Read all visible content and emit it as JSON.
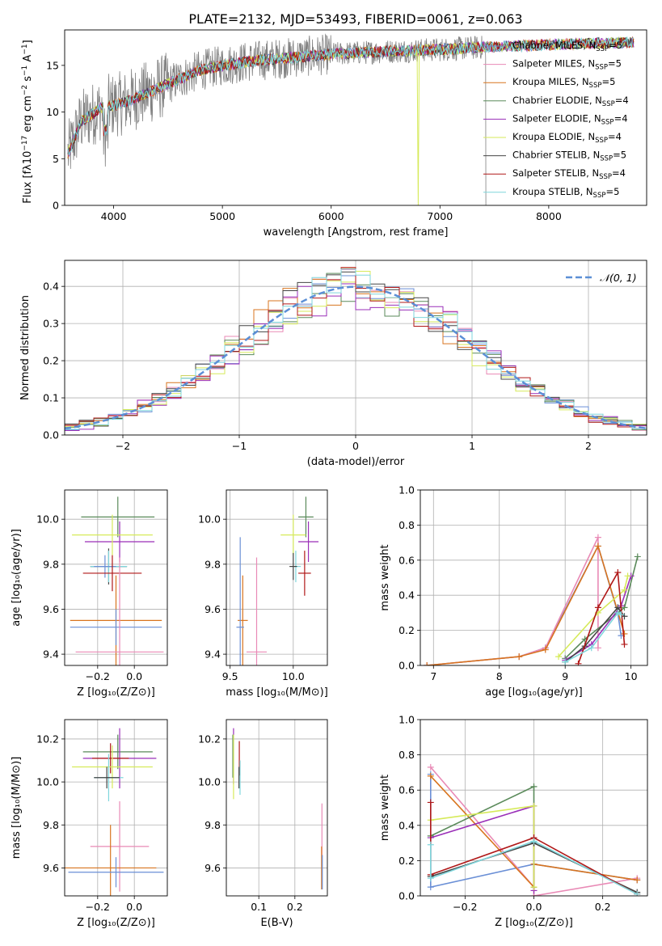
{
  "figure": {
    "title": "PLATE=2132, MJD=53493, FIBERID=0061, z=0.063"
  },
  "models": [
    {
      "name": "Chabrier MILES",
      "nssp": "5",
      "color": "#6a8fd6"
    },
    {
      "name": "Salpeter MILES",
      "nssp": "5",
      "color": "#e98ab6"
    },
    {
      "name": "Kroupa MILES",
      "nssp": "5",
      "color": "#d8741f"
    },
    {
      "name": "Chabrier ELODIE",
      "nssp": "4",
      "color": "#5a8a5a"
    },
    {
      "name": "Salpeter ELODIE",
      "nssp": "4",
      "color": "#9a2fb8"
    },
    {
      "name": "Kroupa ELODIE",
      "nssp": "4",
      "color": "#d6ea5a"
    },
    {
      "name": "Chabrier STELIB",
      "nssp": "5",
      "color": "#444444"
    },
    {
      "name": "Salpeter STELIB",
      "nssp": "4",
      "color": "#b01818"
    },
    {
      "name": "Kroupa STELIB",
      "nssp": "5",
      "color": "#7fd6dc"
    }
  ],
  "chart_data": [
    {
      "id": "spectrum",
      "type": "line",
      "xlabel": "wavelength [Angstrom, rest frame]",
      "ylabel_main": "Flux [f",
      "xlim": [
        3550,
        8900
      ],
      "ylim": [
        0,
        18.8
      ],
      "xticks": [
        4000,
        5000,
        6000,
        7000,
        8000
      ],
      "yticks": [
        0,
        5,
        10,
        15
      ],
      "grid": false,
      "legend": "right",
      "continuum": [
        [
          3580,
          5.5
        ],
        [
          3700,
          9
        ],
        [
          3900,
          10.5
        ],
        [
          4100,
          11
        ],
        [
          4300,
          12
        ],
        [
          4500,
          13
        ],
        [
          4800,
          14.5
        ],
        [
          5000,
          15
        ],
        [
          5300,
          15.5
        ],
        [
          5600,
          15.8
        ],
        [
          6000,
          16.2
        ],
        [
          6500,
          16.5
        ],
        [
          7000,
          16.7
        ],
        [
          7500,
          17
        ],
        [
          8000,
          17.2
        ],
        [
          8500,
          17.4
        ],
        [
          8800,
          17.5
        ]
      ],
      "data_color": "#808080",
      "data_end": 7420,
      "model_end": 8780
    },
    {
      "id": "residuals",
      "type": "histogram",
      "xlabel": "(data-model)/error",
      "ylabel": "Normed distribution",
      "xlim": [
        -2.5,
        2.5
      ],
      "ylim": [
        0,
        0.47
      ],
      "xticks": [
        -2,
        -1,
        0,
        1,
        2
      ],
      "yticks": [
        0.0,
        0.1,
        0.2,
        0.3,
        0.4
      ],
      "grid": true,
      "legend": "top-right",
      "legend_label": "𝒩(0, 1)",
      "bins": 40,
      "bin_width": 0.125,
      "curve_color": "#5b8fd6"
    },
    {
      "id": "age_vs_Z",
      "type": "scatter",
      "xlabel": "Z [log₁₀(Z/Z⊙)]",
      "ylabel": "age  [log₁₀(age/yr)]",
      "xlim": [
        -0.38,
        0.18
      ],
      "ylim": [
        9.35,
        10.13
      ],
      "xticks": [
        -0.2,
        0.0
      ],
      "yticks": [
        9.4,
        9.6,
        9.8,
        10.0
      ],
      "grid": true,
      "points": [
        {
          "x": -0.09,
          "y": 10.01,
          "ex": 0.2,
          "ey": 0.09,
          "m": 3
        },
        {
          "x": -0.08,
          "y": 9.9,
          "ex": 0.19,
          "ey": 0.09,
          "m": 4
        },
        {
          "x": -0.12,
          "y": 9.93,
          "ex": 0.22,
          "ey": 0.09,
          "m": 5
        },
        {
          "x": -0.14,
          "y": 9.79,
          "ex": 0.1,
          "ey": 0.08,
          "m": 6
        },
        {
          "x": -0.14,
          "y": 9.79,
          "ex": 0.1,
          "ey": 0.07,
          "m": 8
        },
        {
          "x": -0.16,
          "y": 9.79,
          "ex": 0.06,
          "ey": 0.05,
          "m": 0
        },
        {
          "x": -0.12,
          "y": 9.76,
          "ex": 0.16,
          "ey": 0.08,
          "m": 7
        },
        {
          "x": -0.1,
          "y": 9.55,
          "ex": 0.25,
          "ey": 0.2,
          "m": 2
        },
        {
          "x": -0.1,
          "y": 9.52,
          "ex": 0.25,
          "ey": 0.08,
          "m": 0
        },
        {
          "x": -0.08,
          "y": 9.41,
          "ex": 0.24,
          "ey": 0.42,
          "m": 1
        }
      ]
    },
    {
      "id": "age_vs_mass",
      "type": "scatter",
      "xlabel": "mass [log₁₀(M/M⊙)]",
      "ylabel": "",
      "xlim": [
        9.47,
        10.27
      ],
      "ylim": [
        9.35,
        10.13
      ],
      "xticks": [
        9.5,
        10.0
      ],
      "yticks": [
        9.4,
        9.6,
        9.8,
        10.0
      ],
      "grid": true,
      "points": [
        {
          "x": 10.1,
          "y": 10.01,
          "ex": 0.06,
          "ey": 0.09,
          "m": 3
        },
        {
          "x": 10.12,
          "y": 9.9,
          "ex": 0.08,
          "ey": 0.09,
          "m": 4
        },
        {
          "x": 10.0,
          "y": 9.93,
          "ex": 0.1,
          "ey": 0.09,
          "m": 5
        },
        {
          "x": 10.02,
          "y": 9.79,
          "ex": 0.04,
          "ey": 0.07,
          "m": 8
        },
        {
          "x": 10.0,
          "y": 9.79,
          "ex": 0.03,
          "ey": 0.06,
          "m": 6
        },
        {
          "x": 10.09,
          "y": 9.76,
          "ex": 0.05,
          "ey": 0.1,
          "m": 7
        },
        {
          "x": 9.6,
          "y": 9.55,
          "ex": 0.04,
          "ey": 0.2,
          "m": 2
        },
        {
          "x": 9.58,
          "y": 9.52,
          "ex": 0.03,
          "ey": 0.4,
          "m": 0
        },
        {
          "x": 9.71,
          "y": 9.41,
          "ex": 0.08,
          "ey": 0.42,
          "m": 1
        }
      ]
    },
    {
      "id": "mass_weight_vs_age",
      "type": "line",
      "xlabel": "age  [log₁₀(age/yr)]",
      "ylabel": "mass weight",
      "xlim": [
        6.8,
        10.25
      ],
      "ylim": [
        0,
        1.0
      ],
      "xticks": [
        7,
        8,
        9,
        10
      ],
      "yticks": [
        0.0,
        0.2,
        0.4,
        0.6,
        0.8,
        1.0
      ],
      "grid": true,
      "series": [
        {
          "m": 0,
          "x": [
            6.9,
            8.3,
            8.7,
            9.5,
            9.8,
            9.85
          ],
          "y": [
            0.0,
            0.05,
            0.1,
            0.68,
            0.3,
            0.17
          ]
        },
        {
          "m": 1,
          "x": [
            6.9,
            8.3,
            8.7,
            9.5,
            9.5
          ],
          "y": [
            0.0,
            0.05,
            0.1,
            0.73,
            0.1
          ]
        },
        {
          "m": 2,
          "x": [
            6.9,
            8.3,
            8.7,
            9.5,
            9.9
          ],
          "y": [
            0.0,
            0.05,
            0.09,
            0.68,
            0.18
          ]
        },
        {
          "m": 3,
          "x": [
            9.0,
            9.3,
            9.9,
            10.1
          ],
          "y": [
            0.04,
            0.15,
            0.33,
            0.62
          ]
        },
        {
          "m": 4,
          "x": [
            9.0,
            9.4,
            9.85,
            10.0
          ],
          "y": [
            0.03,
            0.12,
            0.34,
            0.51
          ]
        },
        {
          "m": 5,
          "x": [
            8.9,
            9.5,
            9.9,
            9.95
          ],
          "y": [
            0.05,
            0.3,
            0.43,
            0.51
          ]
        },
        {
          "m": 6,
          "x": [
            9.0,
            9.3,
            9.8,
            9.9
          ],
          "y": [
            0.02,
            0.11,
            0.33,
            0.28
          ]
        },
        {
          "m": 7,
          "x": [
            9.2,
            9.5,
            9.8,
            9.9
          ],
          "y": [
            0.01,
            0.33,
            0.53,
            0.12
          ]
        },
        {
          "m": 8,
          "x": [
            9.0,
            9.4,
            9.8,
            9.85
          ],
          "y": [
            0.02,
            0.1,
            0.3,
            0.29
          ]
        }
      ]
    },
    {
      "id": "mass_vs_Z",
      "type": "scatter",
      "xlabel": "Z [log₁₀(Z/Z⊙)]",
      "ylabel": "mass [log₁₀(M/M⊙)]",
      "xlim": [
        -0.38,
        0.18
      ],
      "ylim": [
        9.47,
        10.29
      ],
      "xticks": [
        -0.2,
        0.0
      ],
      "yticks": [
        9.6,
        9.8,
        10.0,
        10.2
      ],
      "grid": true,
      "points": [
        {
          "x": -0.09,
          "y": 10.14,
          "ex": 0.19,
          "ey": 0.08,
          "m": 3
        },
        {
          "x": -0.08,
          "y": 10.11,
          "ex": 0.2,
          "ey": 0.14,
          "m": 4
        },
        {
          "x": -0.13,
          "y": 10.11,
          "ex": 0.1,
          "ey": 0.07,
          "m": 7
        },
        {
          "x": -0.12,
          "y": 10.07,
          "ex": 0.22,
          "ey": 0.1,
          "m": 5
        },
        {
          "x": -0.14,
          "y": 10.02,
          "ex": 0.08,
          "ey": 0.11,
          "m": 8
        },
        {
          "x": -0.15,
          "y": 10.02,
          "ex": 0.07,
          "ey": 0.05,
          "m": 6
        },
        {
          "x": -0.08,
          "y": 9.7,
          "ex": 0.16,
          "ey": 0.21,
          "m": 1
        },
        {
          "x": -0.13,
          "y": 9.6,
          "ex": 0.25,
          "ey": 0.2,
          "m": 2
        },
        {
          "x": -0.1,
          "y": 9.58,
          "ex": 0.26,
          "ey": 0.07,
          "m": 0
        }
      ]
    },
    {
      "id": "mass_vs_EBV",
      "type": "scatter",
      "xlabel": "E(B-V)",
      "ylabel": "",
      "xlim": [
        0.01,
        0.29
      ],
      "ylim": [
        9.47,
        10.29
      ],
      "xticks": [
        0.1,
        0.2
      ],
      "yticks": [
        9.6,
        9.8,
        10.0,
        10.2
      ],
      "grid": true,
      "points": [
        {
          "x": 0.03,
          "y": 10.12,
          "ex": 0.0,
          "ey": 0.13,
          "m": 4
        },
        {
          "x": 0.028,
          "y": 10.12,
          "ex": 0.0,
          "ey": 0.1,
          "m": 3
        },
        {
          "x": 0.03,
          "y": 10.07,
          "ex": 0.0,
          "ey": 0.15,
          "m": 5
        },
        {
          "x": 0.046,
          "y": 10.11,
          "ex": 0.0,
          "ey": 0.08,
          "m": 7
        },
        {
          "x": 0.048,
          "y": 10.02,
          "ex": 0.0,
          "ey": 0.08,
          "m": 8
        },
        {
          "x": 0.045,
          "y": 10.02,
          "ex": 0.0,
          "ey": 0.05,
          "m": 6
        },
        {
          "x": 0.275,
          "y": 9.7,
          "ex": 0.0,
          "ey": 0.2,
          "m": 1
        },
        {
          "x": 0.274,
          "y": 9.6,
          "ex": 0.0,
          "ey": 0.1,
          "m": 2
        },
        {
          "x": 0.276,
          "y": 9.58,
          "ex": 0.0,
          "ey": 0.08,
          "m": 0
        }
      ]
    },
    {
      "id": "mass_weight_vs_Z",
      "type": "line",
      "xlabel": "Z [log₁₀(Z/Z⊙)]",
      "ylabel": "mass weight",
      "xlim": [
        -0.33,
        0.33
      ],
      "ylim": [
        0,
        1.0
      ],
      "xticks": [
        -0.2,
        0.0,
        0.2
      ],
      "yticks": [
        0.0,
        0.2,
        0.4,
        0.6,
        0.8,
        1.0
      ],
      "grid": true,
      "series": [
        {
          "m": 0,
          "x": [
            -0.3,
            -0.3,
            0.0,
            0.0,
            0.3
          ],
          "y": [
            0.69,
            0.05,
            0.18,
            0.18,
            0.09
          ]
        },
        {
          "m": 1,
          "x": [
            -0.3,
            0.0,
            0.0,
            0.3
          ],
          "y": [
            0.73,
            0.05,
            0.0,
            0.1
          ]
        },
        {
          "m": 2,
          "x": [
            -0.3,
            0.0,
            0.0,
            0.3
          ],
          "y": [
            0.68,
            0.05,
            0.18,
            0.09
          ]
        },
        {
          "m": 3,
          "x": [
            -0.3,
            0.0,
            0.0
          ],
          "y": [
            0.34,
            0.62,
            0.05
          ]
        },
        {
          "m": 4,
          "x": [
            -0.3,
            0.0,
            0.0
          ],
          "y": [
            0.33,
            0.51,
            0.03
          ]
        },
        {
          "m": 5,
          "x": [
            -0.3,
            0.0,
            0.0
          ],
          "y": [
            0.43,
            0.51,
            0.05
          ]
        },
        {
          "m": 6,
          "x": [
            -0.3,
            0.0,
            0.3
          ],
          "y": [
            0.11,
            0.3,
            0.02
          ]
        },
        {
          "m": 7,
          "x": [
            -0.3,
            -0.3,
            0.0,
            0.3
          ],
          "y": [
            0.53,
            0.12,
            0.33,
            0.01
          ]
        },
        {
          "m": 8,
          "x": [
            -0.3,
            -0.3,
            0.0,
            0.3
          ],
          "y": [
            0.29,
            0.1,
            0.31,
            0.01
          ]
        }
      ]
    }
  ]
}
